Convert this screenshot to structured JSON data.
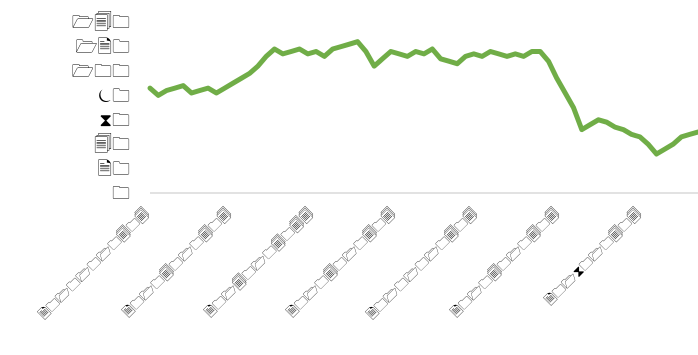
{
  "chart_data": {
    "type": "line",
    "title": "",
    "xlabel": "",
    "ylabel": "",
    "grid": false,
    "legend": "none",
    "series_color": "#70ad47",
    "axis_color": "#d9d9d9",
    "y_tick_labels": [
      {
        "value": 7,
        "label": "🗁🗐🗀"
      },
      {
        "value": 6,
        "label": "🗁🗎🗀"
      },
      {
        "value": 5,
        "label": "🗁🗀🗀"
      },
      {
        "value": 4,
        "label": "⏾🗀"
      },
      {
        "value": 3,
        "label": "⧗🗀"
      },
      {
        "value": 2,
        "label": "🗐🗀"
      },
      {
        "value": 1,
        "label": "🗎🗀"
      },
      {
        "value": 0,
        "label": "🗀"
      }
    ],
    "ylim": [
      0,
      7.5
    ],
    "x_tick_labels": [
      "🗎🗀🗁🗀🗁🗀🗁🗀🗐🗀🗐",
      "🗎🗀🗁🗀🗐🗀🗁🗀🗐🗀🗐",
      "🗎🗀🗁🗐🗀🗁🗀🗐🗀🗐🗐",
      "🗎🗀🗁🗀🗐🗀🗁🗀🗐🗀🗐",
      "🗎🗀🗁🗀🗁🗀🗁🗀🗐🗀🗐",
      "🗎🗀🗁🗀🗐🗀🗁🗀🗐🗀🗐",
      "🗎🗀🗁⧗🗀🗁🗀🗐🗀🗐"
    ],
    "series": [
      {
        "values": [
          4.3,
          4.0,
          4.2,
          4.3,
          4.4,
          4.1,
          4.2,
          4.3,
          4.1,
          4.3,
          4.5,
          4.7,
          4.9,
          5.2,
          5.6,
          5.9,
          5.7,
          5.8,
          5.9,
          5.7,
          5.8,
          5.6,
          5.9,
          6.0,
          6.1,
          6.2,
          5.8,
          5.2,
          5.5,
          5.8,
          5.7,
          5.6,
          5.8,
          5.7,
          5.9,
          5.5,
          5.4,
          5.3,
          5.6,
          5.7,
          5.6,
          5.8,
          5.7,
          5.6,
          5.7,
          5.6,
          5.8,
          5.8,
          5.4,
          4.7,
          4.1,
          3.5,
          2.6,
          2.8,
          3.0,
          2.9,
          2.7,
          2.6,
          2.4,
          2.3,
          2.0,
          1.6,
          1.8,
          2.0,
          2.3,
          2.4,
          2.5
        ]
      }
    ]
  }
}
